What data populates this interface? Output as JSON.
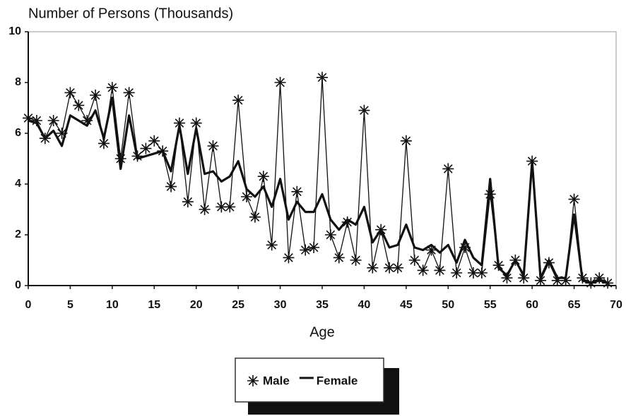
{
  "chart_data": {
    "type": "line",
    "title": "Number of Persons (Thousands)",
    "x_label": "Age",
    "x": [
      0,
      1,
      2,
      3,
      4,
      5,
      6,
      7,
      8,
      9,
      10,
      11,
      12,
      13,
      14,
      15,
      16,
      17,
      18,
      19,
      20,
      21,
      22,
      23,
      24,
      25,
      26,
      27,
      28,
      29,
      30,
      31,
      32,
      33,
      34,
      35,
      36,
      37,
      38,
      39,
      40,
      41,
      42,
      43,
      44,
      45,
      46,
      47,
      48,
      49,
      50,
      51,
      52,
      53,
      54,
      55,
      56,
      57,
      58,
      59,
      60,
      61,
      62,
      63,
      64,
      65,
      66,
      67,
      68,
      69
    ],
    "series": [
      {
        "name": "Male",
        "color": "#111111",
        "marker": "asterisk",
        "values": [
          6.6,
          6.5,
          5.8,
          6.5,
          6.0,
          7.6,
          7.1,
          6.5,
          7.5,
          5.6,
          7.8,
          5.0,
          7.6,
          5.1,
          5.4,
          5.7,
          5.3,
          3.9,
          6.4,
          3.3,
          6.4,
          3.0,
          5.5,
          3.1,
          3.1,
          7.3,
          3.5,
          2.7,
          4.3,
          1.6,
          8.0,
          1.1,
          3.7,
          1.4,
          1.5,
          8.2,
          2.0,
          1.1,
          2.5,
          1.0,
          6.9,
          0.7,
          2.2,
          0.7,
          0.7,
          5.7,
          1.0,
          0.6,
          1.4,
          0.6,
          4.6,
          0.5,
          1.5,
          0.5,
          0.5,
          3.6,
          0.8,
          0.3,
          1.0,
          0.3,
          4.9,
          0.2,
          0.9,
          0.2,
          0.2,
          3.4,
          0.3,
          0.1,
          0.3,
          0.1
        ]
      },
      {
        "name": "Female",
        "color": "#111111",
        "marker": "none",
        "values": [
          6.5,
          6.4,
          5.8,
          6.1,
          5.5,
          6.7,
          6.5,
          6.3,
          6.9,
          5.8,
          7.4,
          4.6,
          6.7,
          5.0,
          5.1,
          5.2,
          5.3,
          4.5,
          6.3,
          4.4,
          6.2,
          4.4,
          4.5,
          4.1,
          4.3,
          4.9,
          3.8,
          3.5,
          3.9,
          3.1,
          4.2,
          2.6,
          3.3,
          2.9,
          2.9,
          3.6,
          2.6,
          2.2,
          2.6,
          2.4,
          3.1,
          1.7,
          2.2,
          1.5,
          1.6,
          2.4,
          1.5,
          1.4,
          1.6,
          1.3,
          1.6,
          0.9,
          1.8,
          1.1,
          0.8,
          4.2,
          0.7,
          0.4,
          1.0,
          0.4,
          4.9,
          0.3,
          1.0,
          0.3,
          0.3,
          2.8,
          0.2,
          0.1,
          0.2,
          0.1
        ]
      }
    ],
    "xlim": [
      0,
      70
    ],
    "xticks": [
      0,
      5,
      10,
      15,
      20,
      25,
      30,
      35,
      40,
      45,
      50,
      55,
      60,
      65,
      70
    ],
    "ylim": [
      0,
      10
    ],
    "yticks": [
      0,
      2,
      4,
      6,
      8,
      10
    ],
    "grid": false,
    "legend": "bottom"
  }
}
